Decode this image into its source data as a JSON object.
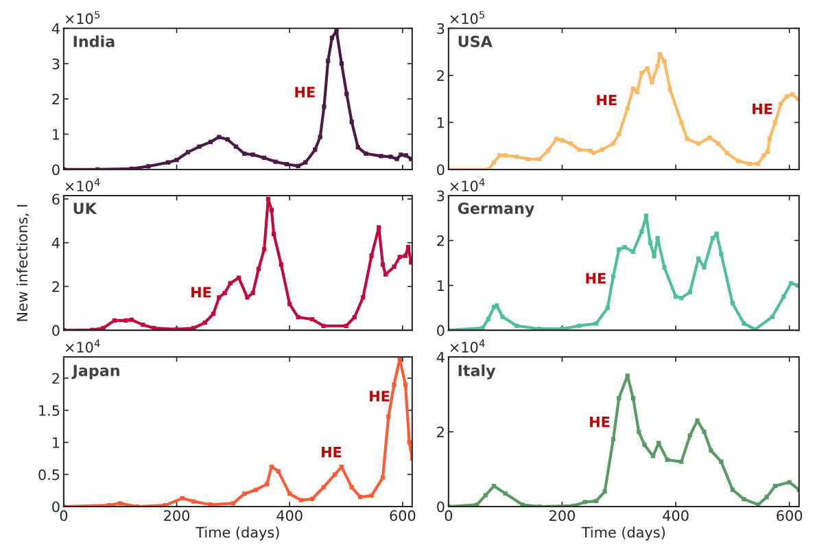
{
  "chart_data": [
    {
      "type": "line",
      "title": "India",
      "tick_labels": "y",
      "color": "#4b1a45",
      "line_style": "solid",
      "marker": "square",
      "x": [
        0,
        60,
        120,
        150,
        185,
        200,
        220,
        240,
        260,
        275,
        290,
        305,
        320,
        335,
        355,
        375,
        395,
        415,
        428,
        445,
        454,
        461,
        468,
        475,
        483,
        492,
        501,
        510,
        521,
        535,
        562,
        579,
        590,
        597,
        606,
        615
      ],
      "values": [
        0,
        0,
        0.02,
        0.09,
        0.2,
        0.27,
        0.49,
        0.65,
        0.78,
        0.92,
        0.85,
        0.65,
        0.45,
        0.42,
        0.33,
        0.22,
        0.15,
        0.1,
        0.2,
        0.56,
        0.92,
        1.78,
        3.08,
        3.73,
        3.93,
        3.0,
        2.14,
        1.35,
        0.63,
        0.45,
        0.38,
        0.36,
        0.3,
        0.42,
        0.4,
        0.3
      ],
      "xlim": [
        0,
        617
      ],
      "xticks": [
        0,
        200,
        400,
        600
      ],
      "ylim": [
        0,
        4
      ],
      "yticks": [
        0,
        1,
        2,
        3,
        4
      ],
      "annotations": [
        "×10$^{5}$",
        "HE"
      ]
    },
    {
      "type": "line",
      "title": "USA",
      "tick_labels": "y",
      "color": "#fdb863",
      "line_style": "solid",
      "marker": "square",
      "x": [
        0,
        70,
        80,
        90,
        100,
        120,
        140,
        160,
        175,
        190,
        200,
        215,
        230,
        250,
        255,
        270,
        290,
        300,
        315,
        325,
        332,
        340,
        350,
        358,
        368,
        372,
        380,
        390,
        410,
        420,
        440,
        460,
        475,
        490,
        510,
        530,
        545,
        555,
        562,
        565,
        575,
        585,
        595,
        605,
        615
      ],
      "values": [
        0,
        0,
        0.15,
        0.3,
        0.3,
        0.27,
        0.22,
        0.22,
        0.4,
        0.65,
        0.62,
        0.55,
        0.42,
        0.4,
        0.35,
        0.42,
        0.55,
        0.75,
        1.3,
        1.72,
        1.65,
        2.05,
        2.15,
        1.85,
        2.2,
        2.45,
        2.3,
        1.7,
        1.0,
        0.65,
        0.55,
        0.68,
        0.55,
        0.35,
        0.18,
        0.12,
        0.12,
        0.3,
        0.38,
        0.65,
        1.0,
        1.4,
        1.55,
        1.6,
        1.5
      ],
      "xlim": [
        0,
        617
      ],
      "xticks": [
        0,
        200,
        400,
        600
      ],
      "ylim": [
        0,
        3
      ],
      "yticks": [
        0,
        1,
        2,
        3
      ],
      "annotations": [
        "×10$^{5}$",
        "HE",
        "HE"
      ]
    },
    {
      "type": "line",
      "title": "UK",
      "ylabel": "New infections, I",
      "tick_labels": "y",
      "color": "#c40a3c",
      "line_style": "solid",
      "marker": "square",
      "x": [
        0,
        50,
        70,
        90,
        110,
        120,
        140,
        160,
        200,
        230,
        250,
        265,
        275,
        285,
        295,
        310,
        325,
        335,
        345,
        355,
        362,
        368,
        372,
        385,
        400,
        415,
        440,
        460,
        500,
        515,
        530,
        545,
        558,
        565,
        570,
        585,
        595,
        605,
        610,
        615
      ],
      "values": [
        0,
        0.02,
        0.1,
        0.45,
        0.45,
        0.48,
        0.25,
        0.1,
        0.05,
        0.1,
        0.35,
        0.75,
        1.5,
        1.7,
        2.15,
        2.4,
        1.5,
        1.7,
        2.8,
        3.7,
        6.0,
        5.5,
        4.4,
        3.0,
        1.2,
        0.6,
        0.5,
        0.2,
        0.2,
        0.6,
        1.5,
        3.4,
        4.7,
        3.0,
        2.55,
        2.9,
        3.35,
        3.4,
        3.8,
        3.1
      ],
      "xlim": [
        0,
        617
      ],
      "xticks": [
        0,
        200,
        400,
        600
      ],
      "ylim": [
        0,
        6.15
      ],
      "yticks": [
        0,
        2,
        4,
        6
      ],
      "annotations": [
        "×10$^{4}$",
        "HE"
      ]
    },
    {
      "type": "line",
      "title": "Germany",
      "tick_labels": "y",
      "color": "#4dbf99",
      "line_style": "solid",
      "marker": "square",
      "x": [
        0,
        60,
        70,
        80,
        85,
        95,
        120,
        160,
        200,
        230,
        260,
        280,
        290,
        300,
        310,
        325,
        340,
        348,
        355,
        362,
        368,
        380,
        400,
        410,
        425,
        440,
        450,
        465,
        472,
        480,
        500,
        520,
        540,
        570,
        590,
        603,
        615
      ],
      "values": [
        0,
        0.05,
        0.25,
        0.52,
        0.55,
        0.3,
        0.1,
        0.03,
        0.03,
        0.1,
        0.15,
        0.5,
        1.2,
        1.8,
        1.85,
        1.75,
        2.2,
        2.55,
        1.95,
        1.65,
        2.05,
        1.4,
        0.75,
        0.72,
        0.85,
        1.6,
        1.4,
        2.05,
        2.15,
        1.7,
        0.6,
        0.15,
        0.02,
        0.3,
        0.75,
        1.05,
        1.0
      ],
      "xlim": [
        0,
        617
      ],
      "xticks": [
        0,
        200,
        400,
        600
      ],
      "ylim": [
        0,
        3
      ],
      "yticks": [
        0,
        1,
        2,
        3
      ],
      "annotations": [
        "×10$^{4}$",
        "HE"
      ]
    },
    {
      "type": "line",
      "title": "Japan",
      "xlabel": "Time (days)",
      "color": "#fb5b35",
      "line_style": "solid",
      "marker": "square",
      "x": [
        0,
        80,
        100,
        130,
        180,
        210,
        230,
        260,
        300,
        320,
        340,
        360,
        368,
        380,
        400,
        420,
        440,
        460,
        480,
        492,
        510,
        525,
        545,
        565,
        575,
        585,
        595,
        605,
        612,
        617
      ],
      "values": [
        0,
        0.02,
        0.05,
        0,
        0.02,
        0.13,
        0.08,
        0.03,
        0.05,
        0.2,
        0.26,
        0.35,
        0.62,
        0.55,
        0.2,
        0.1,
        0.12,
        0.3,
        0.5,
        0.62,
        0.3,
        0.15,
        0.17,
        0.45,
        1.4,
        1.9,
        2.3,
        1.9,
        1.0,
        0.75
      ],
      "xlim": [
        0,
        617
      ],
      "xticks": [
        0,
        200,
        400,
        600
      ],
      "ylim": [
        0,
        2.33
      ],
      "yticks": [
        0,
        0.5,
        1,
        1.5,
        2
      ],
      "annotations": [
        "×10$^{4}$",
        "HE",
        "HE"
      ]
    },
    {
      "type": "line",
      "title": "Italy",
      "xlabel": "Time (days)",
      "color": "#5a9a64",
      "line_style": "solid",
      "marker": "square",
      "x": [
        0,
        50,
        65,
        80,
        100,
        130,
        160,
        220,
        240,
        260,
        275,
        290,
        300,
        315,
        325,
        335,
        345,
        360,
        370,
        385,
        410,
        425,
        438,
        450,
        462,
        480,
        500,
        520,
        545,
        560,
        575,
        600,
        617
      ],
      "values": [
        0,
        0.05,
        0.3,
        0.55,
        0.35,
        0.05,
        0,
        0.02,
        0.12,
        0.15,
        0.4,
        1.8,
        2.9,
        3.5,
        2.9,
        2.0,
        1.65,
        1.35,
        1.7,
        1.25,
        1.2,
        1.9,
        2.3,
        2.0,
        1.5,
        1.2,
        0.45,
        0.2,
        0.05,
        0.25,
        0.55,
        0.65,
        0.45
      ],
      "xlim": [
        0,
        617
      ],
      "xticks": [
        0,
        200,
        400,
        600
      ],
      "ylim": [
        0,
        4
      ],
      "yticks": [
        0,
        2,
        4
      ],
      "annotations": [
        "×10$^{4}$",
        "HE"
      ]
    }
  ]
}
